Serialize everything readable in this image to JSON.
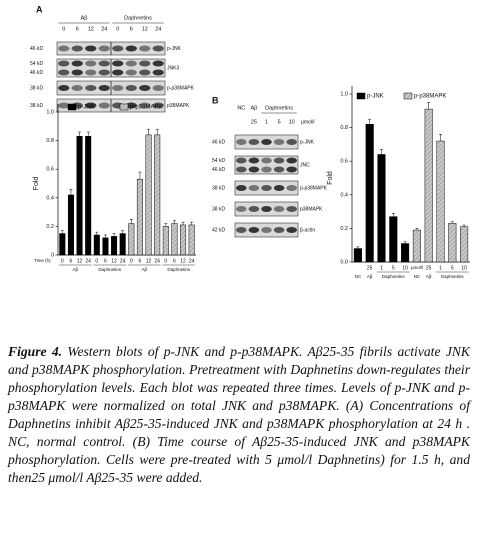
{
  "panels": [
    {
      "letter": "A",
      "headers": [
        "Aβ",
        "Daphnetins"
      ],
      "lanes": [
        "0",
        "6",
        "12",
        "24",
        "0",
        "6",
        "12",
        "24"
      ],
      "rows": [
        {
          "kd": [
            "46 kD"
          ],
          "name": "p-JNK"
        },
        {
          "kd": [
            "54 kD",
            "46 kD"
          ],
          "name": "JNK3"
        },
        {
          "kd": [
            "38 kD"
          ],
          "name": "p-p38MAPK"
        },
        {
          "kd": [
            "38 kD"
          ],
          "name": "p38MAPK"
        }
      ]
    },
    {
      "letter": "B",
      "headers": [
        "NC",
        "Aβ",
        "Daphnetins"
      ],
      "lanes": [
        "25",
        "1",
        "5",
        "10"
      ],
      "unit": "μmol/l",
      "rows": [
        {
          "kd": [
            "46 kD"
          ],
          "name": "p-JNK"
        },
        {
          "kd": [
            "54 kD",
            "46 kD"
          ],
          "name": "JNC"
        },
        {
          "kd": [
            "38 kD"
          ],
          "name": "p-p38MAPK"
        },
        {
          "kd": [
            "38 kD"
          ],
          "name": "p38MAPK"
        },
        {
          "kd": [
            "42 kD"
          ],
          "name": "β-actin"
        }
      ]
    }
  ],
  "chart_data": [
    {
      "type": "bar",
      "y_label": "Fold",
      "x_label": "Time (h)",
      "categories": [
        "0",
        "6",
        "12",
        "24",
        "0",
        "6",
        "12",
        "24",
        "0",
        "6",
        "12",
        "24",
        "0",
        "6",
        "12",
        "24"
      ],
      "groups": [
        "Aβ",
        "Daphnetins",
        "Aβ",
        "Daphnetins"
      ],
      "series": [
        {
          "name": "p-JNK",
          "color": "#000000",
          "values": [
            0.15,
            0.42,
            0.83,
            0.83,
            0.14,
            0.12,
            0.13,
            0.15,
            null,
            null,
            null,
            null,
            null,
            null,
            null,
            null
          ],
          "errors": [
            0.02,
            0.04,
            0.03,
            0.03,
            0.02,
            0.02,
            0.02,
            0.02,
            null,
            null,
            null,
            null,
            null,
            null,
            null,
            null
          ]
        },
        {
          "name": "p-p38MAPK",
          "color": "#c8c8c8",
          "values": [
            null,
            null,
            null,
            null,
            null,
            null,
            null,
            null,
            0.22,
            0.53,
            0.84,
            0.84,
            0.2,
            0.22,
            0.21,
            0.21
          ],
          "errors": [
            null,
            null,
            null,
            null,
            null,
            null,
            null,
            null,
            0.03,
            0.05,
            0.04,
            0.04,
            0.02,
            0.02,
            0.02,
            0.02
          ]
        }
      ],
      "ylim": [
        0,
        1
      ],
      "yticks": [
        0,
        0.2,
        0.4,
        0.6,
        0.8,
        {
          "value": 1,
          "label": "1.0"
        }
      ]
    },
    {
      "type": "bar",
      "y_label": "Fold",
      "unit": "μmol/l",
      "categories": [
        null,
        "25",
        "1",
        "5",
        "10",
        null,
        "25",
        "1",
        "5",
        "10"
      ],
      "groups": [
        "NC",
        "Aβ",
        "Daphnetins",
        "NC",
        "Aβ",
        "Daphnetins"
      ],
      "series": [
        {
          "name": "p-JNK",
          "color": "#000000",
          "values": [
            0.08,
            0.82,
            0.64,
            0.27,
            0.11,
            null,
            null,
            null,
            null,
            null
          ],
          "errors": [
            0.01,
            0.03,
            0.03,
            0.02,
            0.01,
            null,
            null,
            null,
            null,
            null
          ]
        },
        {
          "name": "p-p38MAPK",
          "color": "#c8c8c8",
          "values": [
            null,
            null,
            null,
            null,
            null,
            0.19,
            0.91,
            0.72,
            0.23,
            0.21
          ],
          "errors": [
            null,
            null,
            null,
            null,
            null,
            0.01,
            0.04,
            0.04,
            0.01,
            0.01
          ]
        }
      ],
      "ylim": [
        0,
        1
      ],
      "yticks": [
        {
          "value": 0,
          "label": "0.0"
        },
        0.2,
        0.4,
        0.6,
        0.8,
        {
          "value": 1,
          "label": "1.0"
        }
      ]
    }
  ],
  "caption": {
    "label": "Figure 4.",
    "text": "Western blots of p-JNK and p-p38MAPK. Aβ25-35 fibrils activate JNK and p38MAPK phosphorylation. Pretreatment with Daphnetins down-regulates their phosphorylation levels. Each blot was repeated three times. Levels of p-JNK and p-p38MAPK were normalized on total JNK and p38MAPK. (A) Concentrations of Daphnetins inhibit Aβ25-35-induced JNK and p38MAPK phosphorylation at 24 h . NC, normal control. (B) Time course of Aβ25-35-induced JNK and p38MAPK phosphorylation. Cells were pre-treated with 5 μmol/l Daphnetins) for 1.5 h, and then25 μmol/l Aβ25-35 were added."
  }
}
